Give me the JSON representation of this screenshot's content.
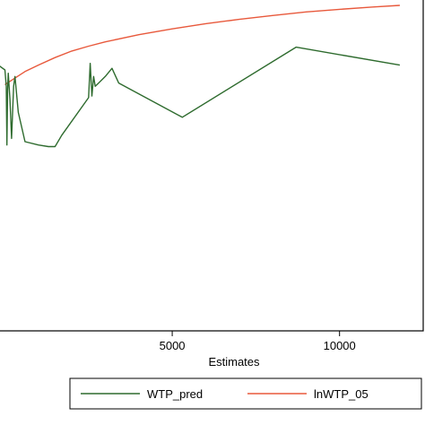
{
  "chart_data": {
    "type": "line",
    "title": "",
    "xlabel": "Estimates",
    "ylabel": "",
    "xlim": [
      -200,
      12500
    ],
    "ylim": [
      -7.0,
      3.2
    ],
    "xticks": [
      5000,
      10000
    ],
    "xtick_labels": [
      "5000",
      "10000"
    ],
    "grid": false,
    "legend_position": "bottom",
    "series": [
      {
        "name": "WTP_pred",
        "color": "#2e6b2e",
        "x": [
          -200,
          0,
          40,
          60,
          80,
          100,
          150,
          200,
          260,
          300,
          400,
          600,
          1000,
          1300,
          1500,
          1700,
          2500,
          2550,
          2600,
          2650,
          2700,
          2800,
          3000,
          3200,
          3400,
          5300,
          8700,
          11800
        ],
        "y": [
          1.15,
          1.0,
          0.5,
          -1.3,
          0.4,
          0.9,
          0.1,
          -1.1,
          0.5,
          0.8,
          -0.3,
          -1.2,
          -1.3,
          -1.35,
          -1.35,
          -1.0,
          0.15,
          1.2,
          0.2,
          0.8,
          0.5,
          0.6,
          0.8,
          1.05,
          0.6,
          -0.45,
          1.7,
          1.15
        ]
      },
      {
        "name": "lnWTP_05",
        "color": "#e8593c",
        "x": [
          0,
          300,
          600,
          1000,
          1500,
          2000,
          2500,
          3000,
          4000,
          5000,
          6000,
          7000,
          8000,
          9000,
          10000,
          11000,
          11800
        ],
        "y": [
          0.55,
          0.75,
          0.95,
          1.15,
          1.38,
          1.58,
          1.73,
          1.86,
          2.08,
          2.26,
          2.42,
          2.55,
          2.67,
          2.78,
          2.86,
          2.93,
          2.98
        ]
      }
    ]
  }
}
